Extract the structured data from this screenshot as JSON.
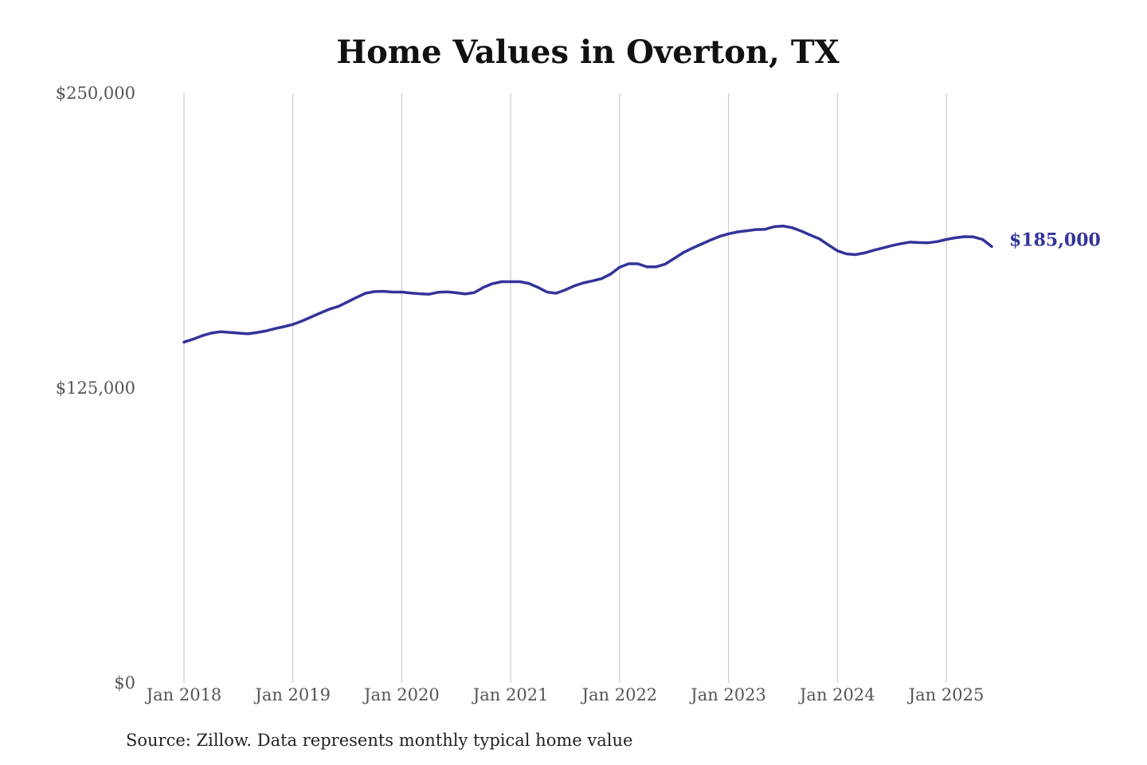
{
  "chart_data": {
    "type": "line",
    "title": "Home Values in Overton, TX",
    "source": "Source: Zillow. Data represents monthly typical home value",
    "ylim": [
      0,
      250000
    ],
    "y_ticks": [
      0,
      125000,
      250000
    ],
    "y_tick_labels": [
      "$0",
      "$125,000",
      "$250,000"
    ],
    "x_ticks": [
      "2018-01",
      "2019-01",
      "2020-01",
      "2021-01",
      "2022-01",
      "2023-01",
      "2024-01",
      "2025-01"
    ],
    "x_tick_labels": [
      "Jan 2018",
      "Jan 2019",
      "Jan 2020",
      "Jan 2021",
      "Jan 2022",
      "Jan 2023",
      "Jan 2024",
      "Jan 2025"
    ],
    "xlim": [
      "2018-01",
      "2025-06"
    ],
    "grid": "vertical",
    "line_color": "#33339a",
    "end_label": "$185,000",
    "series": [
      {
        "x": [
          "2018-01",
          "2018-02",
          "2018-03",
          "2018-04",
          "2018-05",
          "2018-06",
          "2018-07",
          "2018-08",
          "2018-09",
          "2018-10",
          "2018-11",
          "2018-12",
          "2019-01",
          "2019-02",
          "2019-03",
          "2019-04",
          "2019-05",
          "2019-06",
          "2019-07",
          "2019-08",
          "2019-09",
          "2019-10",
          "2019-11",
          "2019-12",
          "2020-01",
          "2020-02",
          "2020-03",
          "2020-04",
          "2020-05",
          "2020-06",
          "2020-07",
          "2020-08",
          "2020-09",
          "2020-10",
          "2020-11",
          "2020-12",
          "2021-01",
          "2021-02",
          "2021-03",
          "2021-04",
          "2021-05",
          "2021-06",
          "2021-07",
          "2021-08",
          "2021-09",
          "2021-10",
          "2021-11",
          "2021-12",
          "2022-01",
          "2022-02",
          "2022-03",
          "2022-04",
          "2022-05",
          "2022-06",
          "2022-07",
          "2022-08",
          "2022-09",
          "2022-10",
          "2022-11",
          "2022-12",
          "2023-01",
          "2023-02",
          "2023-03",
          "2023-04",
          "2023-05",
          "2023-06",
          "2023-07",
          "2023-08",
          "2023-09",
          "2023-10",
          "2023-11",
          "2023-12",
          "2024-01",
          "2024-02",
          "2024-03",
          "2024-04",
          "2024-05",
          "2024-06",
          "2024-07",
          "2024-08",
          "2024-09",
          "2024-10",
          "2024-11",
          "2024-12",
          "2025-01",
          "2025-02",
          "2025-03",
          "2025-04",
          "2025-05",
          "2025-06"
        ],
        "values": [
          144500,
          145700,
          147200,
          148300,
          148900,
          148600,
          148300,
          148000,
          148500,
          149200,
          150200,
          151000,
          152000,
          153400,
          155100,
          156800,
          158400,
          159600,
          161500,
          163400,
          165200,
          165900,
          166000,
          165700,
          165700,
          165300,
          165000,
          164800,
          165600,
          165800,
          165400,
          164900,
          165500,
          167700,
          169300,
          170100,
          170100,
          170100,
          169400,
          167700,
          165700,
          165200,
          166600,
          168300,
          169600,
          170400,
          171400,
          173300,
          176200,
          177700,
          177700,
          176400,
          176400,
          177500,
          179900,
          182400,
          184300,
          186000,
          187700,
          189300,
          190400,
          191200,
          191700,
          192200,
          192300,
          193400,
          193700,
          193000,
          191600,
          189900,
          188300,
          185700,
          183200,
          181900,
          181600,
          182300,
          183400,
          184400,
          185400,
          186200,
          186900,
          186700,
          186600,
          187100,
          188000,
          188700,
          189200,
          189100,
          188000,
          185000
        ]
      }
    ]
  }
}
